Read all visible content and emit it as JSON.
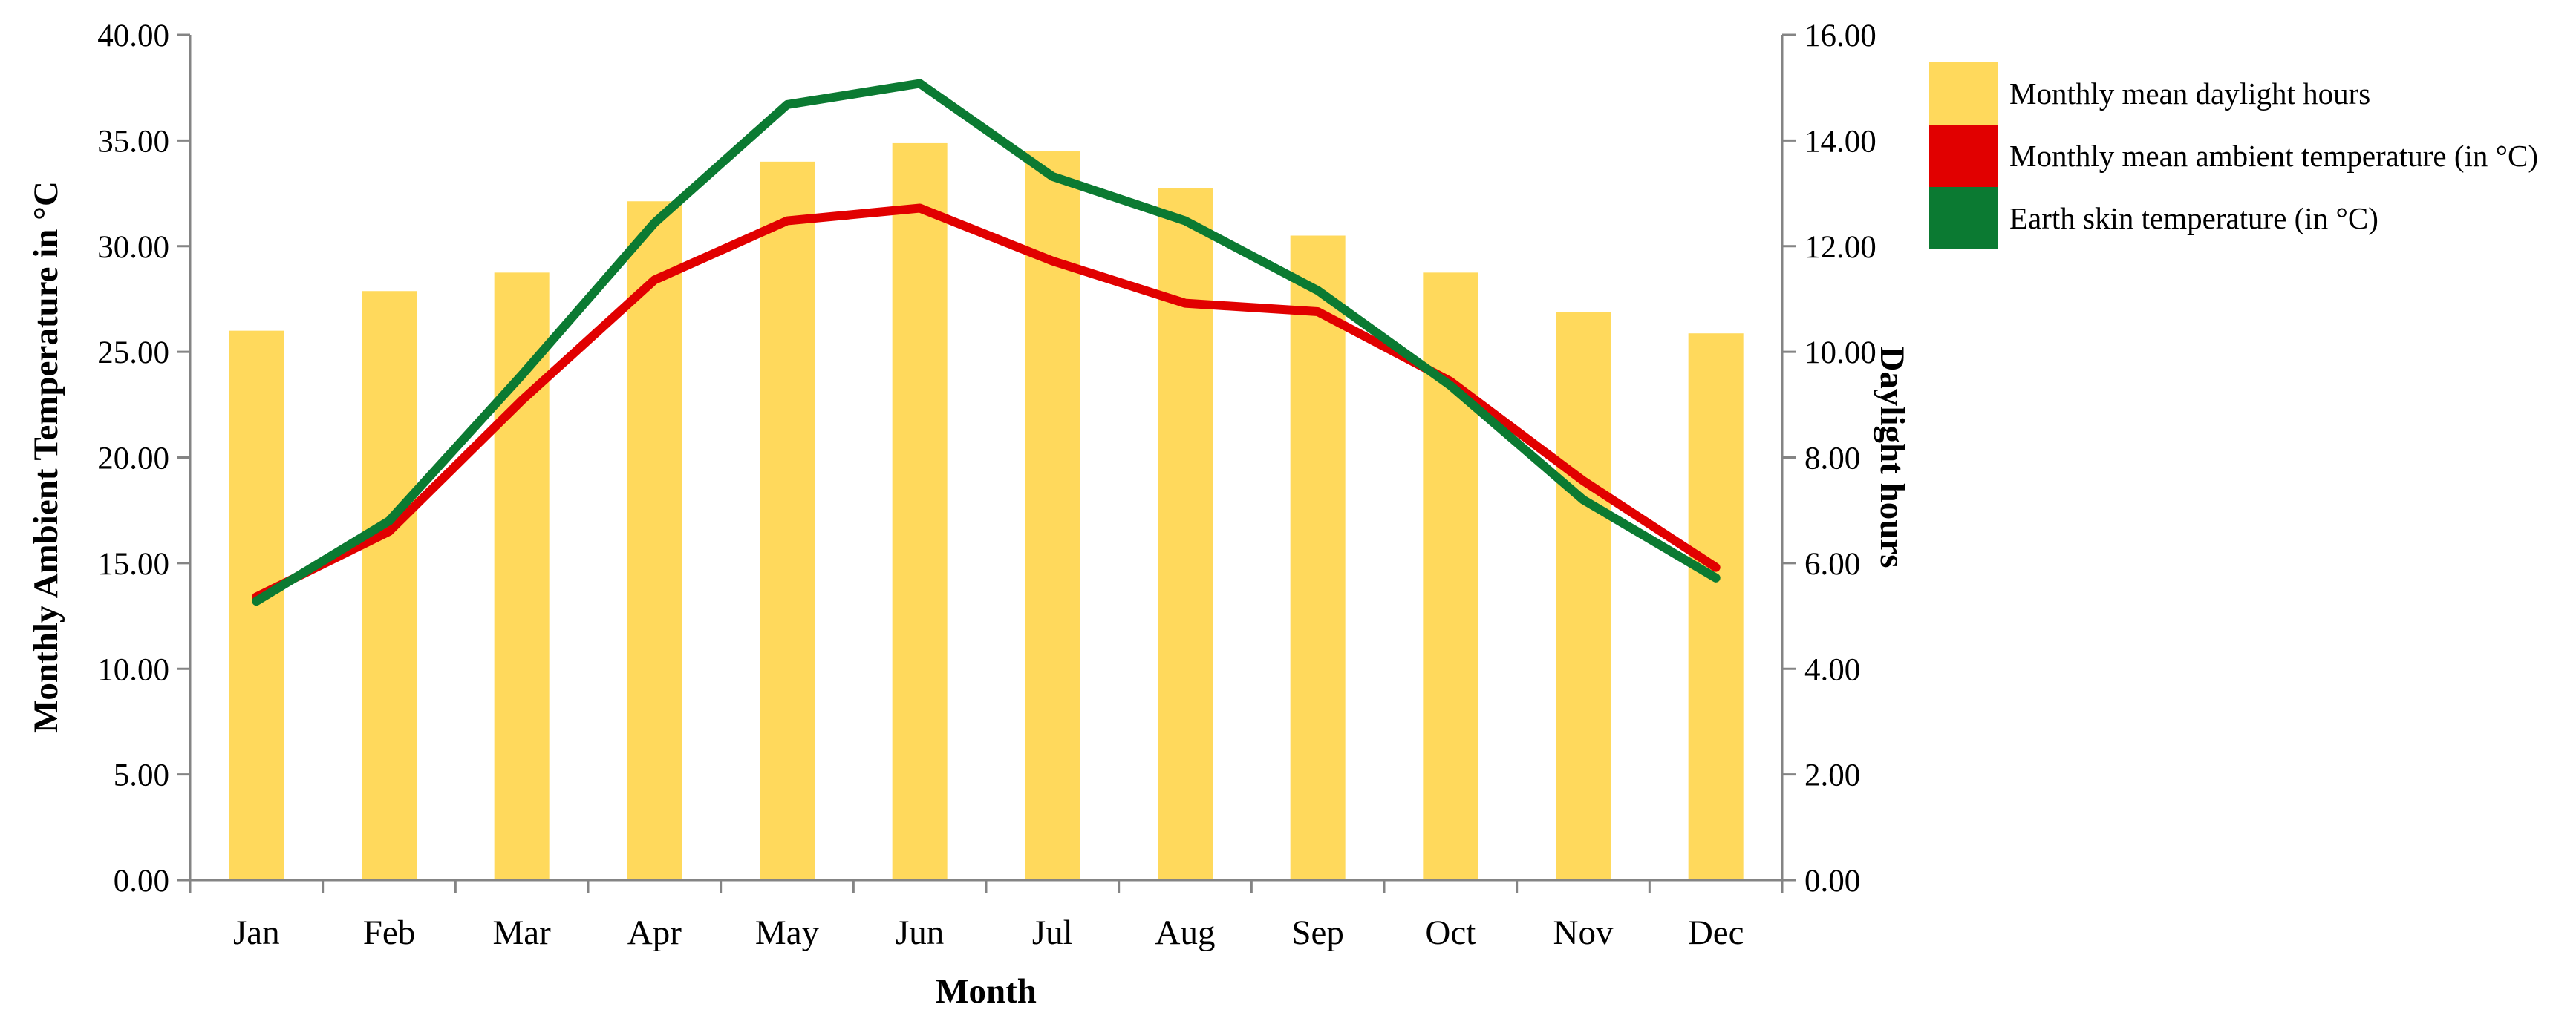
{
  "chart_data": {
    "type": "combo",
    "categories": [
      "Jan",
      "Feb",
      "Mar",
      "Apr",
      "May",
      "Jun",
      "Jul",
      "Aug",
      "Sep",
      "Oct",
      "Nov",
      "Dec"
    ],
    "series": [
      {
        "name": "Monthly mean daylight hours",
        "type": "bar",
        "axis": "right",
        "color": "#FFD95C",
        "values": [
          10.4,
          11.15,
          11.5,
          12.85,
          13.6,
          13.95,
          13.8,
          13.1,
          12.2,
          11.5,
          10.75,
          10.35
        ]
      },
      {
        "name": "Monthly mean ambient temperature (in °C)",
        "type": "line",
        "axis": "left",
        "color": "#E10000",
        "values": [
          13.4,
          16.5,
          22.7,
          28.4,
          31.2,
          31.8,
          29.3,
          27.3,
          26.9,
          23.6,
          18.9,
          14.8
        ]
      },
      {
        "name": "Earth skin temperature (in °C)",
        "type": "line",
        "axis": "left",
        "color": "#0B7A32",
        "values": [
          13.2,
          17.0,
          23.9,
          31.1,
          36.7,
          37.7,
          33.3,
          31.2,
          27.9,
          23.4,
          18.0,
          14.3
        ]
      }
    ],
    "left_axis": {
      "title": "Monthly Ambient Temperature in °C",
      "min": 0,
      "max": 40,
      "step": 5
    },
    "right_axis": {
      "title": "Daylight hours",
      "min": 0,
      "max": 16,
      "step": 2
    },
    "x_axis": {
      "title": "Month"
    },
    "legend_position": "top-right",
    "grid": false,
    "background": "#FFFFFF",
    "axis_color": "#848484",
    "text_color": "#000000"
  }
}
